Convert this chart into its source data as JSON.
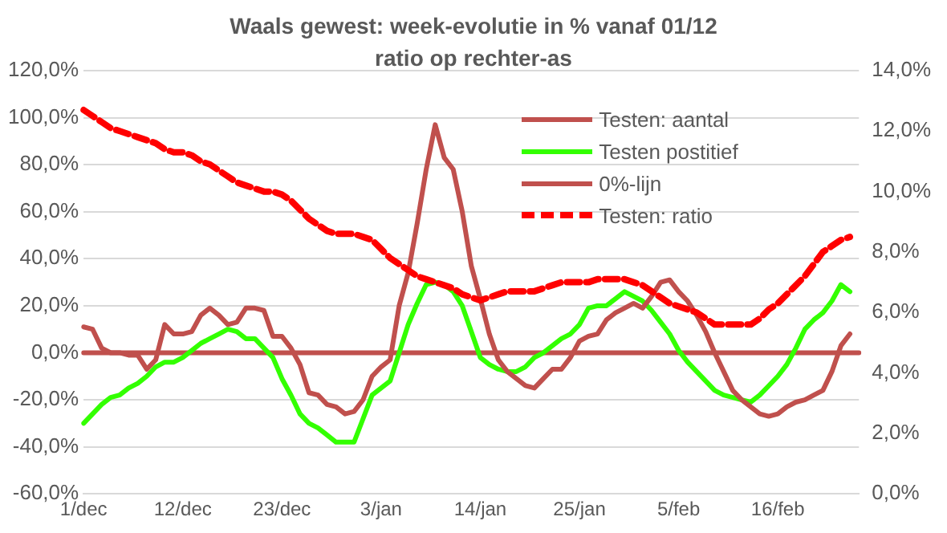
{
  "chart_data": {
    "type": "line",
    "title": "Waals gewest: week-evolutie in % vanaf 01/12",
    "subtitle": "ratio op rechter-as",
    "categories": [
      "1/dec",
      null,
      null,
      null,
      null,
      null,
      null,
      null,
      null,
      null,
      null,
      "12/dec",
      null,
      null,
      null,
      null,
      null,
      null,
      null,
      null,
      null,
      null,
      "23/dec",
      null,
      null,
      null,
      null,
      null,
      null,
      null,
      null,
      null,
      null,
      "3/jan",
      null,
      null,
      null,
      null,
      null,
      null,
      null,
      null,
      null,
      null,
      "14/jan",
      null,
      null,
      null,
      null,
      null,
      null,
      null,
      null,
      null,
      null,
      "25/jan",
      null,
      null,
      null,
      null,
      null,
      null,
      null,
      null,
      null,
      null,
      "5/feb",
      null,
      null,
      null,
      null,
      null,
      null,
      null,
      null,
      null,
      null,
      "16/feb",
      null,
      null,
      null,
      null,
      null,
      null,
      null,
      null,
      null
    ],
    "series": [
      {
        "name": "Testen: aantal",
        "color": "#c0504d",
        "values": [
          11,
          10,
          2,
          0,
          0,
          -1,
          -1,
          -7,
          -3,
          12,
          8,
          8,
          9,
          16,
          19,
          16,
          12,
          13,
          19,
          19,
          18,
          7,
          7,
          2,
          -5,
          -17,
          -18,
          -22,
          -23,
          -26,
          -25,
          -20,
          -10,
          -6,
          -3,
          20,
          34,
          55,
          78,
          97,
          83,
          78,
          60,
          37,
          23,
          8,
          -3,
          -8,
          -11,
          -14,
          -15,
          -11,
          -7,
          -7,
          -2,
          5,
          7,
          8,
          14,
          17,
          19,
          21,
          19,
          24,
          30,
          31,
          26,
          22,
          16,
          9,
          0,
          -8,
          -16,
          -20,
          -23,
          -26,
          -27,
          -26,
          -23,
          -21,
          -20,
          -18,
          -16,
          -8,
          3,
          8,
          null
        ]
      },
      {
        "name": "Testen postitief",
        "color": "#33ff00",
        "values": [
          -30,
          -26,
          -22,
          -19,
          -18,
          -15,
          -13,
          -10,
          -6,
          -4,
          -4,
          -2,
          1,
          4,
          6,
          8,
          10,
          9,
          6,
          6,
          2,
          -2,
          -11,
          -18,
          -26,
          -30,
          -32,
          -35,
          -38,
          -38,
          -38,
          -28,
          -18,
          -15,
          -12,
          0,
          12,
          21,
          29,
          30,
          29,
          26,
          20,
          9,
          -2,
          -5,
          -7,
          -8,
          -8,
          -6,
          -2,
          0,
          3,
          6,
          8,
          12,
          19,
          20,
          20,
          23,
          26,
          24,
          22,
          18,
          13,
          8,
          1,
          -4,
          -8,
          -12,
          -16,
          -18,
          -19,
          -20,
          -21,
          -18,
          -14,
          -10,
          -5,
          2,
          10,
          14,
          17,
          22,
          29,
          26,
          null
        ]
      },
      {
        "name": "0%-lijn",
        "color": "#c0504d",
        "values": [
          0,
          0,
          0,
          0,
          0,
          0,
          0,
          0,
          0,
          0,
          0,
          0,
          0,
          0,
          0,
          0,
          0,
          0,
          0,
          0,
          0,
          0,
          0,
          0,
          0,
          0,
          0,
          0,
          0,
          0,
          0,
          0,
          0,
          0,
          0,
          0,
          0,
          0,
          0,
          0,
          0,
          0,
          0,
          0,
          0,
          0,
          0,
          0,
          0,
          0,
          0,
          0,
          0,
          0,
          0,
          0,
          0,
          0,
          0,
          0,
          0,
          0,
          0,
          0,
          0,
          0,
          0,
          0,
          0,
          0,
          0,
          0,
          0,
          0,
          0,
          0,
          0,
          0,
          0,
          0,
          0,
          0,
          0,
          0,
          0,
          0,
          0
        ]
      },
      {
        "name": "Testen: ratio",
        "color": "#ff0000",
        "axis": "y2",
        "line_style": "dashed",
        "values": [
          12.7,
          12.5,
          12.3,
          12.1,
          12.0,
          11.9,
          11.8,
          11.7,
          11.6,
          11.4,
          11.3,
          11.3,
          11.2,
          11.0,
          10.9,
          10.7,
          10.5,
          10.3,
          10.2,
          10.1,
          10.0,
          10.0,
          9.9,
          9.7,
          9.4,
          9.1,
          8.9,
          8.7,
          8.6,
          8.6,
          8.6,
          8.5,
          8.4,
          8.1,
          7.8,
          7.6,
          7.4,
          7.2,
          7.1,
          7.0,
          6.9,
          6.8,
          6.6,
          6.5,
          6.4,
          6.5,
          6.6,
          6.7,
          6.7,
          6.7,
          6.7,
          6.8,
          6.9,
          7.0,
          7.0,
          7.0,
          7.0,
          7.1,
          7.1,
          7.1,
          7.1,
          7.0,
          6.9,
          6.7,
          6.5,
          6.3,
          6.2,
          6.1,
          6.0,
          5.8,
          5.6,
          5.6,
          5.6,
          5.6,
          5.6,
          5.8,
          6.1,
          6.3,
          6.6,
          6.9,
          7.2,
          7.6,
          8.0,
          8.2,
          8.4,
          8.5,
          null
        ]
      }
    ],
    "ylim": [
      -60,
      120
    ],
    "yticks": [
      {
        "value": -60,
        "label": "-60,0%"
      },
      {
        "value": -40,
        "label": "-40,0%"
      },
      {
        "value": -20,
        "label": "-20,0%"
      },
      {
        "value": 0,
        "label": "0,0%"
      },
      {
        "value": 20,
        "label": "20,0%"
      },
      {
        "value": 40,
        "label": "40,0%"
      },
      {
        "value": 60,
        "label": "60,0%"
      },
      {
        "value": 80,
        "label": "80,0%"
      },
      {
        "value": 100,
        "label": "100,0%"
      },
      {
        "value": 120,
        "label": "120,0%"
      }
    ],
    "y2lim": [
      0,
      14
    ],
    "y2ticks": [
      {
        "value": 0,
        "label": "0,0%"
      },
      {
        "value": 2,
        "label": "2,0%"
      },
      {
        "value": 4,
        "label": "4,0%"
      },
      {
        "value": 6,
        "label": "6,0%"
      },
      {
        "value": 8,
        "label": "8,0%"
      },
      {
        "value": 10,
        "label": "10,0%"
      },
      {
        "value": 12,
        "label": "12,0%"
      },
      {
        "value": 14,
        "label": "14,0%"
      }
    ],
    "grid": "y",
    "legend": "top right",
    "marker": "none",
    "line_style": "solid"
  }
}
